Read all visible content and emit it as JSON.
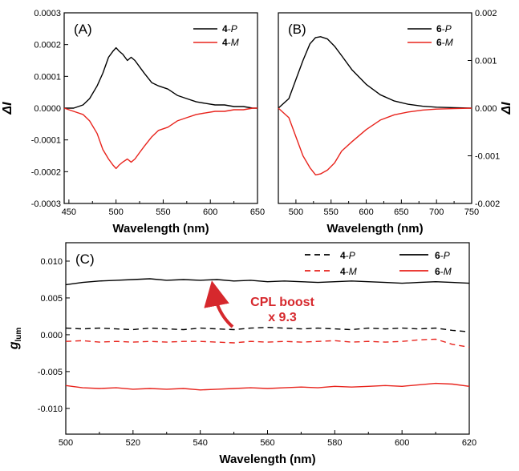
{
  "chart_data": [
    {
      "panel": "(A)",
      "type": "line",
      "xlabel": "Wavelength (nm)",
      "ylabel": "ΔI",
      "xlim": [
        445,
        650
      ],
      "ylim": [
        -0.0003,
        0.0003
      ],
      "xticks": [
        "450",
        "500",
        "550",
        "600",
        "650"
      ],
      "yticks": [
        "-0.0003",
        "-0.0002",
        "-0.0001",
        "0.0000",
        "0.0001",
        "0.0002",
        "0.0003"
      ],
      "legend_position": "top-right",
      "series": [
        {
          "name": "4-P",
          "name_bold": "4",
          "name_italic": "P",
          "color": "#000000",
          "dash": "solid",
          "x": [
            445,
            455,
            465,
            472,
            480,
            486,
            492,
            497,
            500,
            503,
            507,
            512,
            516,
            520,
            525,
            530,
            538,
            545,
            555,
            565,
            575,
            585,
            595,
            605,
            615,
            625,
            635,
            645,
            650
          ],
          "y": [
            0.0,
            0.0,
            1e-05,
            3e-05,
            7e-05,
            0.00011,
            0.00016,
            0.00018,
            0.00019,
            0.00018,
            0.00017,
            0.00015,
            0.00016,
            0.00015,
            0.00013,
            0.00011,
            8e-05,
            7e-05,
            6e-05,
            4e-05,
            3e-05,
            2e-05,
            1.5e-05,
            1e-05,
            1e-05,
            5e-06,
            5e-06,
            0.0,
            0.0
          ]
        },
        {
          "name": "4-M",
          "name_bold": "4",
          "name_italic": "M",
          "color": "#e8231c",
          "dash": "solid",
          "x": [
            445,
            455,
            465,
            472,
            480,
            486,
            492,
            497,
            500,
            503,
            507,
            512,
            516,
            520,
            525,
            530,
            538,
            545,
            555,
            565,
            575,
            585,
            595,
            605,
            615,
            625,
            635,
            645,
            650
          ],
          "y": [
            0.0,
            -1e-05,
            -2e-05,
            -4e-05,
            -8e-05,
            -0.00013,
            -0.00016,
            -0.00018,
            -0.00019,
            -0.00018,
            -0.00017,
            -0.00016,
            -0.00017,
            -0.00016,
            -0.00014,
            -0.00012,
            -9e-05,
            -7e-05,
            -6e-05,
            -4e-05,
            -3e-05,
            -2e-05,
            -1.5e-05,
            -1e-05,
            -1e-05,
            -5e-06,
            -5e-06,
            0.0,
            0.0
          ]
        }
      ]
    },
    {
      "panel": "(B)",
      "type": "line",
      "xlabel": "Wavelength (nm)",
      "ylabel": "ΔI",
      "xlim": [
        475,
        750
      ],
      "ylim": [
        -0.002,
        0.002
      ],
      "xticks": [
        "500",
        "550",
        "600",
        "650",
        "700",
        "750"
      ],
      "yticks": [
        "-0.002",
        "-0.001",
        "0.000",
        "0.001",
        "0.002"
      ],
      "y_axis_side": "right",
      "legend_position": "top-right",
      "series": [
        {
          "name": "6-P",
          "name_bold": "6",
          "name_italic": "P",
          "color": "#000000",
          "dash": "solid",
          "x": [
            475,
            490,
            500,
            510,
            520,
            528,
            535,
            545,
            555,
            565,
            580,
            600,
            620,
            640,
            660,
            680,
            700,
            725,
            750
          ],
          "y": [
            0.0,
            0.0002,
            0.0006,
            0.001,
            0.00135,
            0.00148,
            0.0015,
            0.00145,
            0.0013,
            0.0011,
            0.0008,
            0.0005,
            0.00028,
            0.00015,
            8e-05,
            4e-05,
            2e-05,
            1e-05,
            0.0
          ]
        },
        {
          "name": "6-M",
          "name_bold": "6",
          "name_italic": "M",
          "color": "#e8231c",
          "dash": "solid",
          "x": [
            475,
            490,
            500,
            510,
            520,
            528,
            535,
            545,
            555,
            565,
            580,
            600,
            620,
            640,
            660,
            680,
            700,
            725,
            750
          ],
          "y": [
            0.0,
            -0.0002,
            -0.0006,
            -0.001,
            -0.00125,
            -0.0014,
            -0.00138,
            -0.0013,
            -0.00115,
            -0.0009,
            -0.0007,
            -0.00045,
            -0.00025,
            -0.00014,
            -8e-05,
            -4e-05,
            -2e-05,
            -1e-05,
            0.0
          ]
        }
      ]
    },
    {
      "panel": "(C)",
      "type": "line",
      "xlabel": "Wavelength (nm)",
      "ylabel": "g",
      "ylabel_sub": "lum",
      "xlim": [
        500,
        620
      ],
      "ylim": [
        -0.0135,
        0.0125
      ],
      "xticks": [
        "500",
        "520",
        "540",
        "560",
        "580",
        "600",
        "620"
      ],
      "yticks": [
        "-0.010",
        "-0.005",
        "0.000",
        "0.005",
        "0.010"
      ],
      "ytick_values": [
        -0.01,
        -0.005,
        0.0,
        0.005,
        0.01
      ],
      "legend_position": "top-right",
      "annotation": {
        "line1": "CPL boost",
        "line2": "x 9.3",
        "color": "#d6282d"
      },
      "series": [
        {
          "name": "4-P",
          "name_bold": "4",
          "name_italic": "P",
          "color": "#000000",
          "dash": "dashed",
          "x": [
            500,
            505,
            510,
            515,
            520,
            525,
            530,
            535,
            540,
            545,
            550,
            555,
            560,
            565,
            570,
            575,
            580,
            585,
            590,
            595,
            600,
            605,
            610,
            615,
            620
          ],
          "y": [
            0.0009,
            0.0008,
            0.0009,
            0.0008,
            0.0007,
            0.0009,
            0.0008,
            0.0007,
            0.0009,
            0.0008,
            0.0007,
            0.0009,
            0.001,
            0.0009,
            0.0008,
            0.0009,
            0.0008,
            0.0007,
            0.0009,
            0.0008,
            0.0009,
            0.0008,
            0.0009,
            0.0006,
            0.0004
          ]
        },
        {
          "name": "4-M",
          "name_bold": "4",
          "name_italic": "M",
          "color": "#e8231c",
          "dash": "dashed",
          "x": [
            500,
            505,
            510,
            515,
            520,
            525,
            530,
            535,
            540,
            545,
            550,
            555,
            560,
            565,
            570,
            575,
            580,
            585,
            590,
            595,
            600,
            605,
            610,
            615,
            620
          ],
          "y": [
            -0.0009,
            -0.0008,
            -0.001,
            -0.0009,
            -0.001,
            -0.0009,
            -0.001,
            -0.0009,
            -0.0009,
            -0.001,
            -0.0011,
            -0.0009,
            -0.001,
            -0.0009,
            -0.001,
            -0.0009,
            -0.0008,
            -0.001,
            -0.0009,
            -0.001,
            -0.0009,
            -0.0007,
            -0.0006,
            -0.0013,
            -0.0017
          ]
        },
        {
          "name": "6-P",
          "name_bold": "6",
          "name_italic": "P",
          "color": "#000000",
          "dash": "solid",
          "x": [
            500,
            505,
            510,
            515,
            520,
            525,
            530,
            535,
            540,
            545,
            550,
            555,
            560,
            565,
            570,
            575,
            580,
            585,
            590,
            595,
            600,
            605,
            610,
            615,
            620
          ],
          "y": [
            0.0068,
            0.0071,
            0.0073,
            0.0074,
            0.0075,
            0.0076,
            0.0074,
            0.0075,
            0.0074,
            0.0075,
            0.0073,
            0.0074,
            0.0072,
            0.0073,
            0.0072,
            0.0071,
            0.0072,
            0.0073,
            0.0072,
            0.0071,
            0.007,
            0.0071,
            0.0072,
            0.0071,
            0.007
          ]
        },
        {
          "name": "6-M",
          "name_bold": "6",
          "name_italic": "M",
          "color": "#e8231c",
          "dash": "solid",
          "x": [
            500,
            505,
            510,
            515,
            520,
            525,
            530,
            535,
            540,
            545,
            550,
            555,
            560,
            565,
            570,
            575,
            580,
            585,
            590,
            595,
            600,
            605,
            610,
            615,
            620
          ],
          "y": [
            -0.0069,
            -0.0072,
            -0.0073,
            -0.0072,
            -0.0074,
            -0.0073,
            -0.0074,
            -0.0073,
            -0.0075,
            -0.0074,
            -0.0073,
            -0.0072,
            -0.0073,
            -0.0072,
            -0.0071,
            -0.0072,
            -0.007,
            -0.0071,
            -0.007,
            -0.0069,
            -0.007,
            -0.0068,
            -0.0066,
            -0.0067,
            -0.007
          ]
        }
      ]
    }
  ]
}
